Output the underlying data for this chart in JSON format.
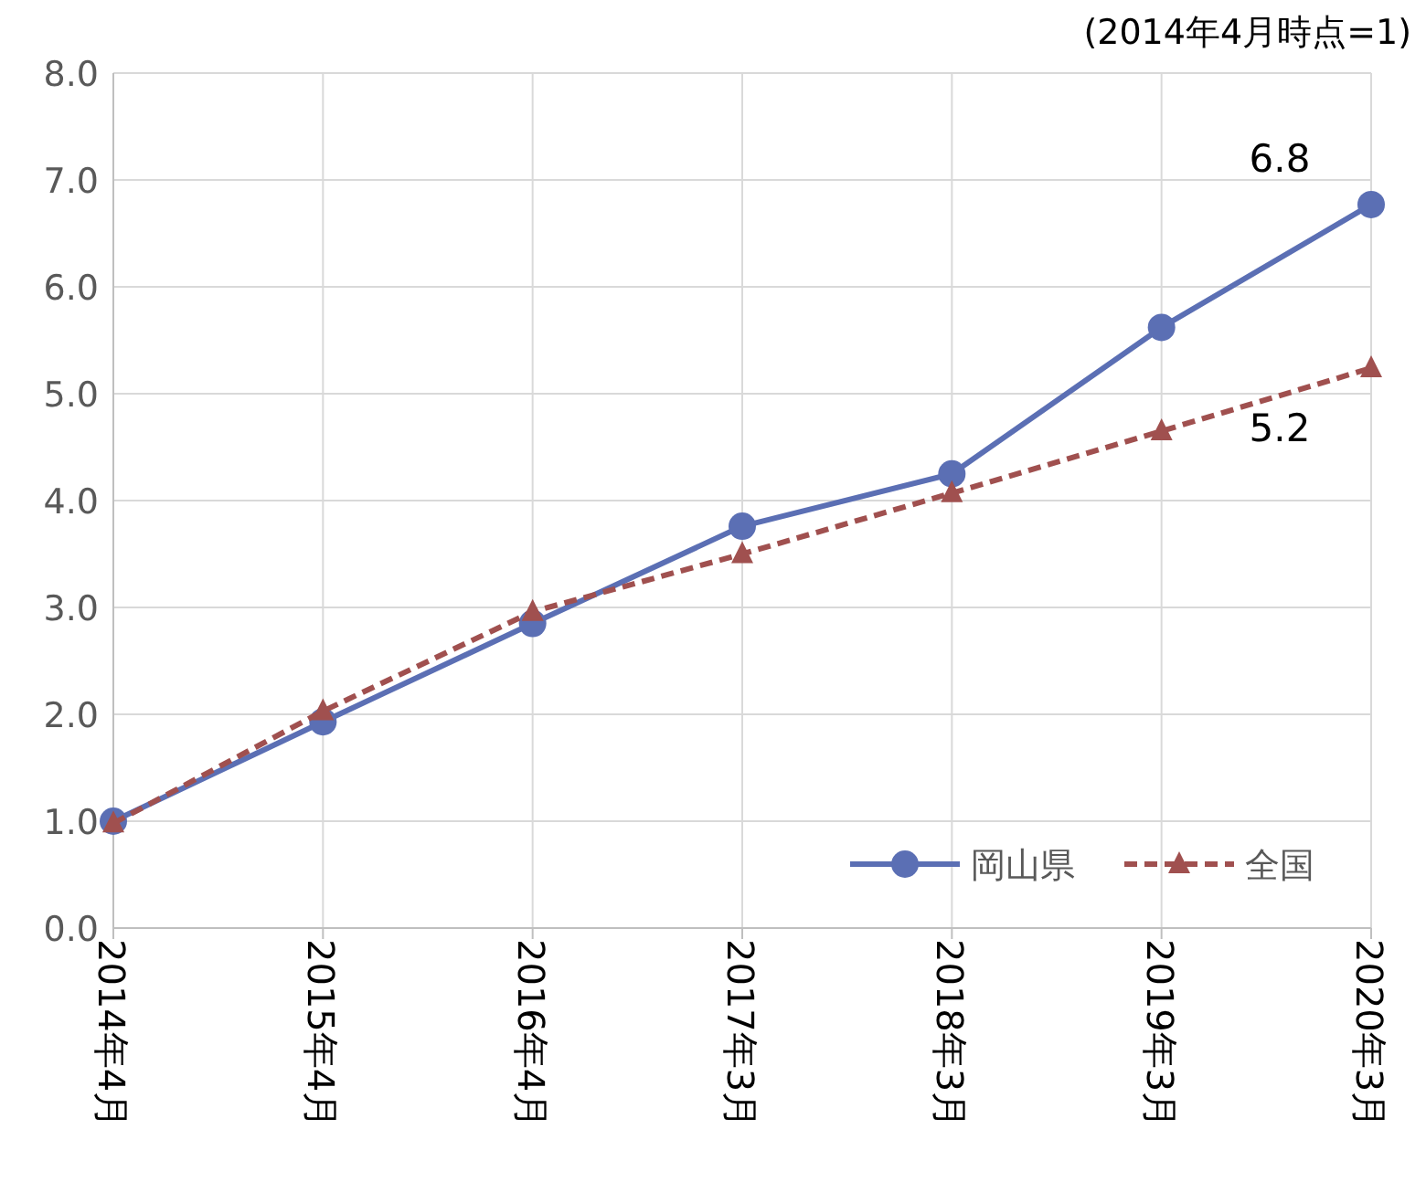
{
  "chart_data": {
    "type": "line",
    "annotations": [
      "(2014年4月時点=1)"
    ],
    "categories": [
      "2014年4月",
      "2015年4月",
      "2016年4月",
      "2017年3月",
      "2018年3月",
      "2019年3月",
      "2020年3月"
    ],
    "series": [
      {
        "name": "岡山県",
        "color": "#5b6fb4",
        "marker": "circle",
        "line_style": "solid",
        "values": [
          1.0,
          1.93,
          2.85,
          3.76,
          4.25,
          5.62,
          6.77
        ],
        "value_labels": [
          null,
          null,
          null,
          null,
          null,
          null,
          "6.8"
        ]
      },
      {
        "name": "全国",
        "color": "#a0504f",
        "marker": "triangle",
        "line_style": "dashed",
        "values": [
          0.98,
          2.03,
          2.96,
          3.5,
          4.07,
          4.65,
          5.24
        ],
        "value_labels": [
          null,
          null,
          null,
          null,
          null,
          null,
          "5.2"
        ]
      }
    ],
    "ylim": [
      0,
      8
    ],
    "yticks": [
      {
        "value": 0,
        "label": "0.0"
      },
      {
        "value": 1,
        "label": "1.0"
      },
      {
        "value": 2,
        "label": "2.0"
      },
      {
        "value": 3,
        "label": "3.0"
      },
      {
        "value": 4,
        "label": "4.0"
      },
      {
        "value": 5,
        "label": "5.0"
      },
      {
        "value": 6,
        "label": "6.0"
      },
      {
        "value": 7,
        "label": "7.0"
      },
      {
        "value": 8,
        "label": "8.0"
      }
    ],
    "grid": true,
    "legend": "bottom right"
  }
}
